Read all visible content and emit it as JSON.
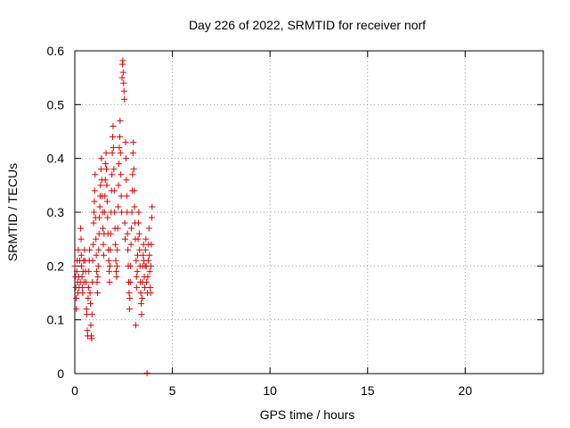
{
  "chart_data": {
    "type": "scatter",
    "title": "Day 226 of 2022, SRMTID for receiver norf",
    "xlabel": "GPS time / hours",
    "ylabel": "SRMTID / TECUs",
    "xlim": [
      0,
      24
    ],
    "ylim": [
      0,
      0.6
    ],
    "x_ticks": [
      0,
      5,
      10,
      15,
      20
    ],
    "x_tick_labels": [
      "0",
      "5",
      "10",
      "15",
      "20"
    ],
    "y_ticks": [
      0,
      0.1,
      0.2,
      0.3,
      0.4,
      0.5,
      0.6
    ],
    "y_tick_labels": [
      "0",
      "0.1",
      "0.2",
      "0.3",
      "0.4",
      "0.5",
      "0.6"
    ],
    "grid": true,
    "marker": "+",
    "series": [
      {
        "name": "SRMTID",
        "color": "#e00000",
        "points": [
          [
            0.0,
            0.2
          ],
          [
            0.03,
            0.18
          ],
          [
            0.05,
            0.16
          ],
          [
            0.07,
            0.14
          ],
          [
            0.08,
            0.12
          ],
          [
            0.1,
            0.19
          ],
          [
            0.12,
            0.21
          ],
          [
            0.14,
            0.17
          ],
          [
            0.16,
            0.15
          ],
          [
            0.18,
            0.23
          ],
          [
            0.2,
            0.18
          ],
          [
            0.22,
            0.16
          ],
          [
            0.25,
            0.21
          ],
          [
            0.28,
            0.17
          ],
          [
            0.3,
            0.27
          ],
          [
            0.32,
            0.25
          ],
          [
            0.33,
            0.22
          ],
          [
            0.35,
            0.2
          ],
          [
            0.37,
            0.18
          ],
          [
            0.38,
            0.16
          ],
          [
            0.4,
            0.15
          ],
          [
            0.42,
            0.19
          ],
          [
            0.45,
            0.21
          ],
          [
            0.47,
            0.17
          ],
          [
            0.5,
            0.23
          ],
          [
            0.52,
            0.21
          ],
          [
            0.55,
            0.19
          ],
          [
            0.57,
            0.17
          ],
          [
            0.6,
            0.12
          ],
          [
            0.62,
            0.11
          ],
          [
            0.64,
            0.08
          ],
          [
            0.66,
            0.07
          ],
          [
            0.68,
            0.14
          ],
          [
            0.7,
            0.16
          ],
          [
            0.72,
            0.19
          ],
          [
            0.74,
            0.21
          ],
          [
            0.76,
            0.23
          ],
          [
            0.78,
            0.15
          ],
          [
            0.8,
            0.13
          ],
          [
            0.82,
            0.09
          ],
          [
            0.84,
            0.07
          ],
          [
            0.86,
            0.065
          ],
          [
            0.88,
            0.11
          ],
          [
            0.9,
            0.17
          ],
          [
            0.92,
            0.21
          ],
          [
            0.94,
            0.24
          ],
          [
            0.96,
            0.28
          ],
          [
            0.98,
            0.3
          ],
          [
            1.0,
            0.32
          ],
          [
            1.02,
            0.34
          ],
          [
            1.04,
            0.37
          ],
          [
            1.06,
            0.29
          ],
          [
            1.08,
            0.25
          ],
          [
            1.1,
            0.22
          ],
          [
            1.12,
            0.19
          ],
          [
            1.14,
            0.17
          ],
          [
            1.16,
            0.15
          ],
          [
            1.18,
            0.18
          ],
          [
            1.2,
            0.2
          ],
          [
            1.22,
            0.23
          ],
          [
            1.24,
            0.26
          ],
          [
            1.26,
            0.29
          ],
          [
            1.28,
            0.31
          ],
          [
            1.3,
            0.33
          ],
          [
            1.32,
            0.35
          ],
          [
            1.34,
            0.38
          ],
          [
            1.36,
            0.4
          ],
          [
            1.38,
            0.36
          ],
          [
            1.4,
            0.33
          ],
          [
            1.42,
            0.3
          ],
          [
            1.44,
            0.27
          ],
          [
            1.46,
            0.24
          ],
          [
            1.48,
            0.22
          ],
          [
            1.5,
            0.26
          ],
          [
            1.52,
            0.3
          ],
          [
            1.54,
            0.33
          ],
          [
            1.56,
            0.36
          ],
          [
            1.58,
            0.39
          ],
          [
            1.6,
            0.41
          ],
          [
            1.62,
            0.38
          ],
          [
            1.64,
            0.35
          ],
          [
            1.66,
            0.32
          ],
          [
            1.68,
            0.29
          ],
          [
            1.7,
            0.26
          ],
          [
            1.72,
            0.23
          ],
          [
            1.74,
            0.21
          ],
          [
            1.76,
            0.19
          ],
          [
            1.78,
            0.17
          ],
          [
            1.8,
            0.2
          ],
          [
            1.82,
            0.23
          ],
          [
            1.84,
            0.26
          ],
          [
            1.86,
            0.3
          ],
          [
            1.88,
            0.34
          ],
          [
            1.9,
            0.37
          ],
          [
            1.92,
            0.41
          ],
          [
            1.94,
            0.44
          ],
          [
            1.96,
            0.46
          ],
          [
            1.98,
            0.42
          ],
          [
            2.0,
            0.38
          ],
          [
            2.02,
            0.34
          ],
          [
            2.04,
            0.3
          ],
          [
            2.06,
            0.27
          ],
          [
            2.08,
            0.24
          ],
          [
            2.1,
            0.21
          ],
          [
            2.12,
            0.19
          ],
          [
            2.14,
            0.18
          ],
          [
            2.16,
            0.2
          ],
          [
            2.18,
            0.23
          ],
          [
            2.2,
            0.27
          ],
          [
            2.22,
            0.31
          ],
          [
            2.24,
            0.35
          ],
          [
            2.26,
            0.39
          ],
          [
            2.28,
            0.42
          ],
          [
            2.3,
            0.44
          ],
          [
            2.32,
            0.47
          ],
          [
            2.34,
            0.41
          ],
          [
            2.36,
            0.37
          ],
          [
            2.38,
            0.33
          ],
          [
            2.4,
            0.3
          ],
          [
            2.42,
            0.55
          ],
          [
            2.44,
            0.575
          ],
          [
            2.46,
            0.582
          ],
          [
            2.48,
            0.56
          ],
          [
            2.5,
            0.54
          ],
          [
            2.52,
            0.525
          ],
          [
            2.54,
            0.51
          ],
          [
            2.56,
            0.28
          ],
          [
            2.58,
            0.25
          ],
          [
            2.6,
            0.43
          ],
          [
            2.62,
            0.4
          ],
          [
            2.64,
            0.36
          ],
          [
            2.66,
            0.33
          ],
          [
            2.68,
            0.3
          ],
          [
            2.7,
            0.26
          ],
          [
            2.72,
            0.23
          ],
          [
            2.74,
            0.2
          ],
          [
            2.76,
            0.17
          ],
          [
            2.78,
            0.15
          ],
          [
            2.8,
            0.12
          ],
          [
            2.82,
            0.14
          ],
          [
            2.84,
            0.17
          ],
          [
            2.86,
            0.2
          ],
          [
            2.88,
            0.24
          ],
          [
            2.9,
            0.27
          ],
          [
            2.92,
            0.3
          ],
          [
            2.94,
            0.34
          ],
          [
            2.96,
            0.37
          ],
          [
            2.98,
            0.41
          ],
          [
            3.0,
            0.43
          ],
          [
            3.02,
            0.38
          ],
          [
            3.04,
            0.34
          ],
          [
            3.06,
            0.31
          ],
          [
            3.08,
            0.28
          ],
          [
            3.1,
            0.25
          ],
          [
            3.12,
            0.09
          ],
          [
            3.14,
            0.21
          ],
          [
            3.16,
            0.18
          ],
          [
            3.18,
            0.16
          ],
          [
            3.2,
            0.19
          ],
          [
            3.22,
            0.22
          ],
          [
            3.24,
            0.25
          ],
          [
            3.26,
            0.28
          ],
          [
            3.28,
            0.3
          ],
          [
            3.3,
            0.26
          ],
          [
            3.32,
            0.23
          ],
          [
            3.34,
            0.2
          ],
          [
            3.36,
            0.17
          ],
          [
            3.38,
            0.15
          ],
          [
            3.4,
            0.13
          ],
          [
            3.42,
            0.11
          ],
          [
            3.44,
            0.14
          ],
          [
            3.46,
            0.17
          ],
          [
            3.48,
            0.2
          ],
          [
            3.5,
            0.22
          ],
          [
            3.52,
            0.24
          ],
          [
            3.54,
            0.21
          ],
          [
            3.56,
            0.18
          ],
          [
            3.58,
            0.16
          ],
          [
            3.6,
            0.2
          ],
          [
            3.62,
            0.23
          ],
          [
            3.64,
            0.25
          ],
          [
            3.66,
            0.2
          ],
          [
            3.68,
            0.17
          ],
          [
            3.7,
            0.001
          ],
          [
            3.72,
            0.15
          ],
          [
            3.74,
            0.18
          ],
          [
            3.76,
            0.21
          ],
          [
            3.78,
            0.24
          ],
          [
            3.8,
            0.27
          ],
          [
            3.82,
            0.22
          ],
          [
            3.84,
            0.19
          ],
          [
            3.86,
            0.16
          ],
          [
            3.88,
            0.15
          ],
          [
            3.9,
            0.2
          ],
          [
            3.92,
            0.24
          ],
          [
            3.94,
            0.29
          ],
          [
            3.96,
            0.31
          ]
        ]
      }
    ]
  }
}
